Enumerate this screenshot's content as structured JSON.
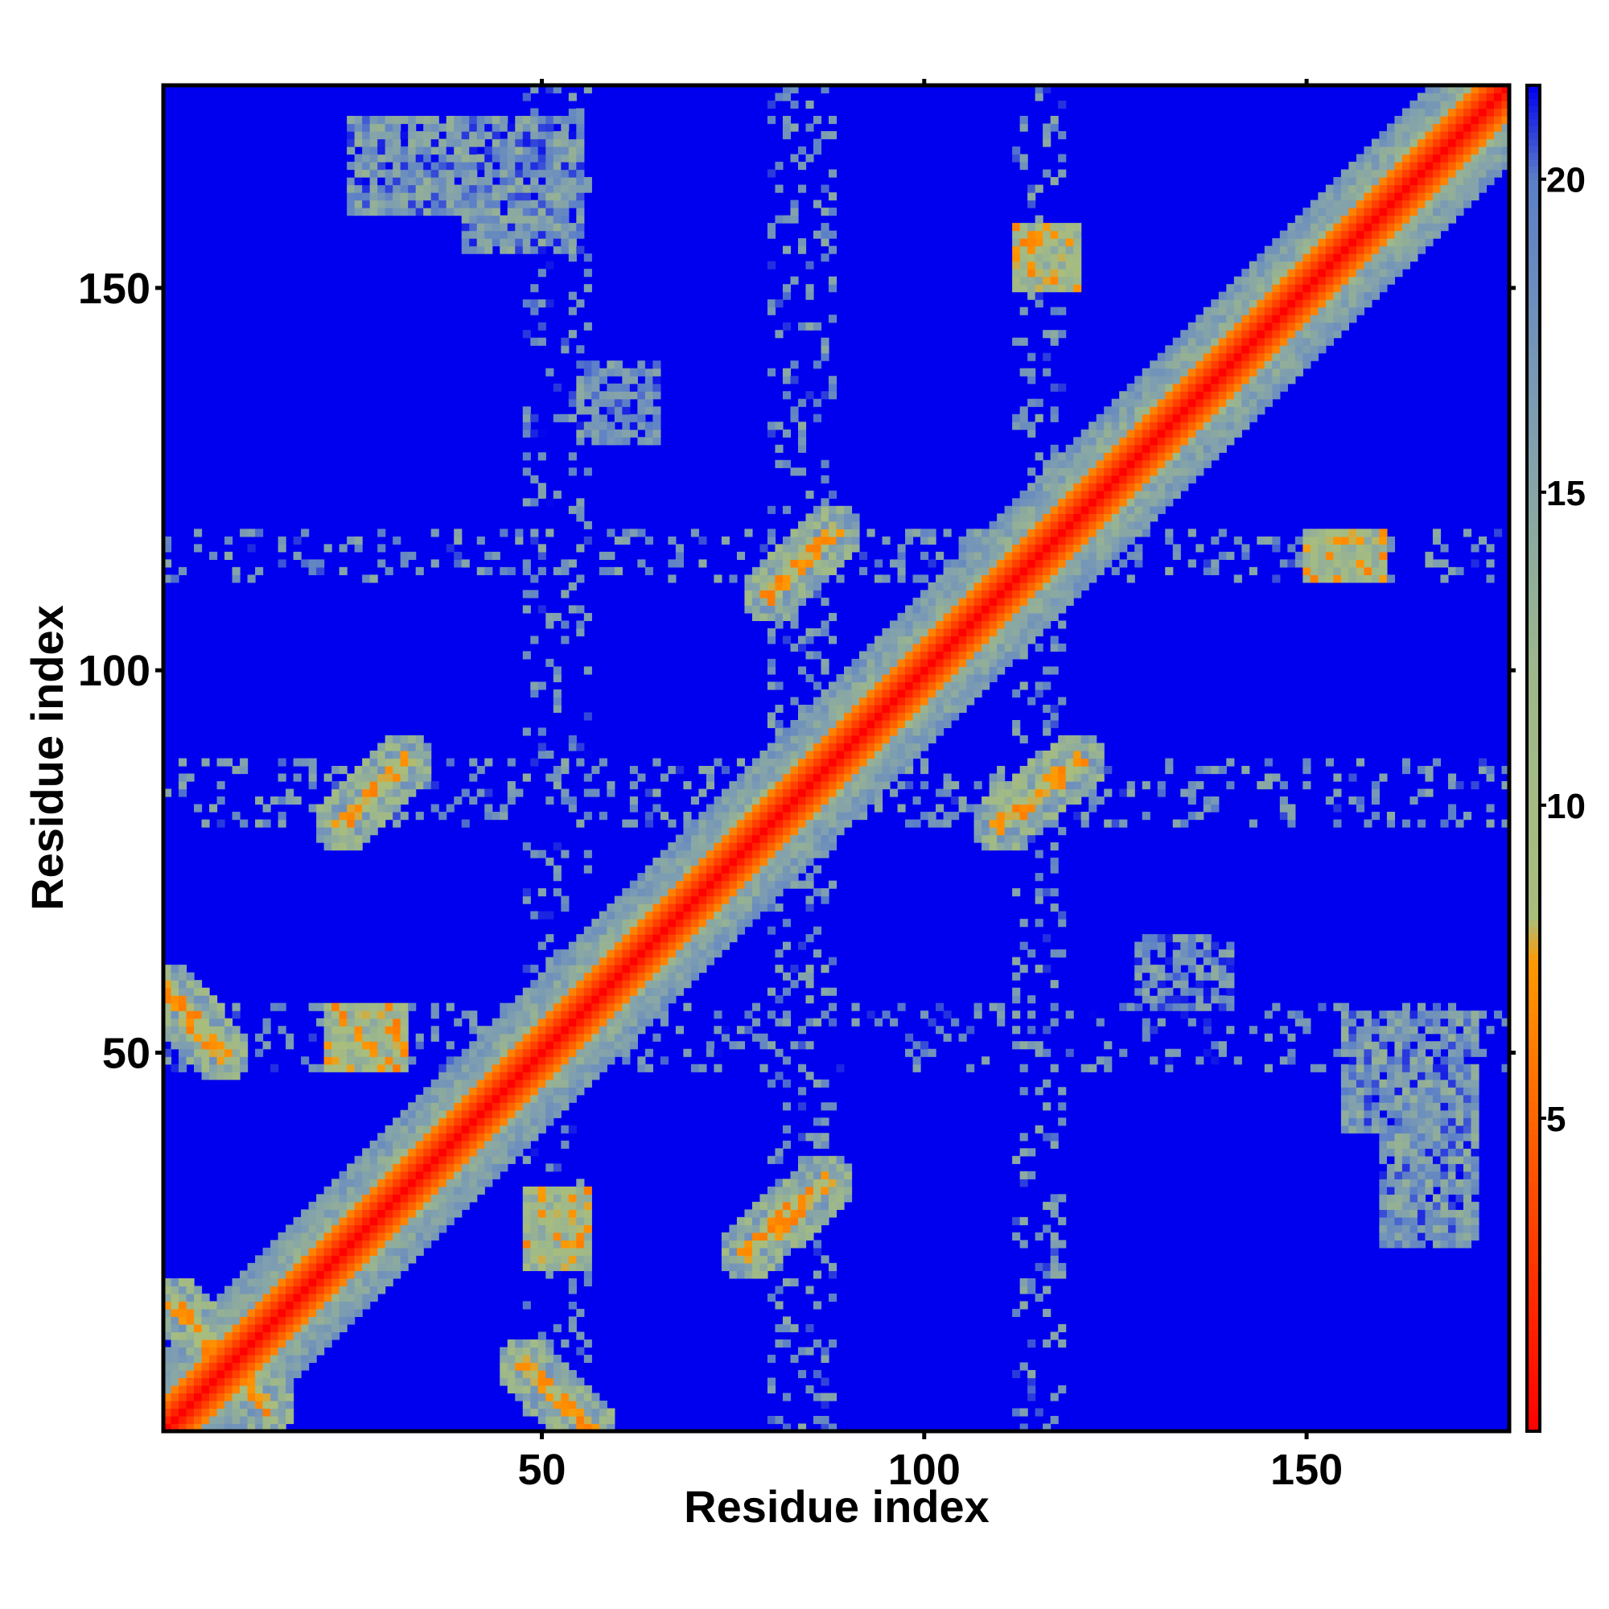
{
  "chart_data": {
    "type": "heatmap",
    "title": "",
    "xlabel": "Residue index",
    "ylabel": "Residue index",
    "n_residues": 176,
    "xlim": [
      0.5,
      176.5
    ],
    "ylim": [
      0.5,
      176.5
    ],
    "x_ticks": [
      50,
      100,
      150
    ],
    "y_ticks": [
      50,
      100,
      150
    ],
    "x_tick_labels": [
      "50",
      "100",
      "150"
    ],
    "y_tick_labels": [
      "50",
      "100",
      "150"
    ],
    "colorbar": {
      "range": [
        0,
        21.5
      ],
      "ticks": [
        5,
        10,
        15,
        20
      ],
      "tick_labels": [
        "5",
        "10",
        "15",
        "20"
      ],
      "stops": [
        {
          "value": 0,
          "color": "#ff0000"
        },
        {
          "value": 4,
          "color": "#ff5000"
        },
        {
          "value": 7.5,
          "color": "#ff9900"
        },
        {
          "value": 8.2,
          "color": "#a9bd7c"
        },
        {
          "value": 12,
          "color": "#9eb88a"
        },
        {
          "value": 16,
          "color": "#7f9fb0"
        },
        {
          "value": 20,
          "color": "#5b7fc8"
        },
        {
          "value": 21.5,
          "color": "#0000ee"
        }
      ]
    },
    "background_value": 21.5,
    "diagonal": {
      "value": 0,
      "bandwidth": 4
    },
    "features": [
      {
        "kind": "anti-diagonal",
        "x": [
          2,
          14
        ],
        "y": [
          17,
          4
        ],
        "value": 6
      },
      {
        "kind": "anti-diagonal",
        "x": [
          1,
          8
        ],
        "y": [
          58,
          50
        ],
        "value": 6
      },
      {
        "kind": "anti-diagonal",
        "x": [
          48,
          56
        ],
        "y": [
          9,
          1
        ],
        "value": 6
      },
      {
        "kind": "parallel",
        "x": [
          24,
          32
        ],
        "y": [
          80,
          88
        ],
        "value": 6
      },
      {
        "kind": "parallel",
        "x": [
          77,
          87
        ],
        "y": [
          24,
          33
        ],
        "value": 6
      },
      {
        "kind": "parallel",
        "x": [
          80,
          88
        ],
        "y": [
          110,
          118
        ],
        "value": 6
      },
      {
        "kind": "parallel",
        "x": [
          110,
          120
        ],
        "y": [
          80,
          88
        ],
        "value": 6
      },
      {
        "kind": "cluster",
        "x": [
          22,
          32
        ],
        "y": [
          48,
          56
        ],
        "value": 6
      },
      {
        "kind": "cluster",
        "x": [
          48,
          56
        ],
        "y": [
          22,
          32
        ],
        "value": 6
      },
      {
        "kind": "cluster",
        "x": [
          150,
          160
        ],
        "y": [
          112,
          118
        ],
        "value": 6
      },
      {
        "kind": "cluster",
        "x": [
          112,
          120
        ],
        "y": [
          150,
          158
        ],
        "value": 6
      },
      {
        "kind": "cluster",
        "x": [
          25,
          45
        ],
        "y": [
          160,
          172
        ],
        "value": 13
      },
      {
        "kind": "cluster",
        "x": [
          160,
          172
        ],
        "y": [
          25,
          45
        ],
        "value": 13
      },
      {
        "kind": "cluster",
        "x": [
          55,
          65
        ],
        "y": [
          130,
          140
        ],
        "value": 14
      },
      {
        "kind": "cluster",
        "x": [
          128,
          140
        ],
        "y": [
          56,
          65
        ],
        "value": 14
      },
      {
        "kind": "cluster",
        "x": [
          155,
          172
        ],
        "y": [
          40,
          55
        ],
        "value": 13
      },
      {
        "kind": "cluster",
        "x": [
          40,
          55
        ],
        "y": [
          155,
          172
        ],
        "value": 13
      },
      {
        "kind": "band",
        "x": [
          1,
          176
        ],
        "y": [
          112,
          118
        ],
        "value": 14
      },
      {
        "kind": "band",
        "x": [
          112,
          118
        ],
        "y": [
          1,
          176
        ],
        "value": 14
      },
      {
        "kind": "band",
        "x": [
          1,
          176
        ],
        "y": [
          80,
          88
        ],
        "value": 14
      },
      {
        "kind": "band",
        "x": [
          80,
          88
        ],
        "y": [
          1,
          176
        ],
        "value": 14
      },
      {
        "kind": "band",
        "x": [
          1,
          176
        ],
        "y": [
          48,
          56
        ],
        "value": 15
      },
      {
        "kind": "band",
        "x": [
          48,
          56
        ],
        "y": [
          1,
          176
        ],
        "value": 15
      }
    ]
  }
}
